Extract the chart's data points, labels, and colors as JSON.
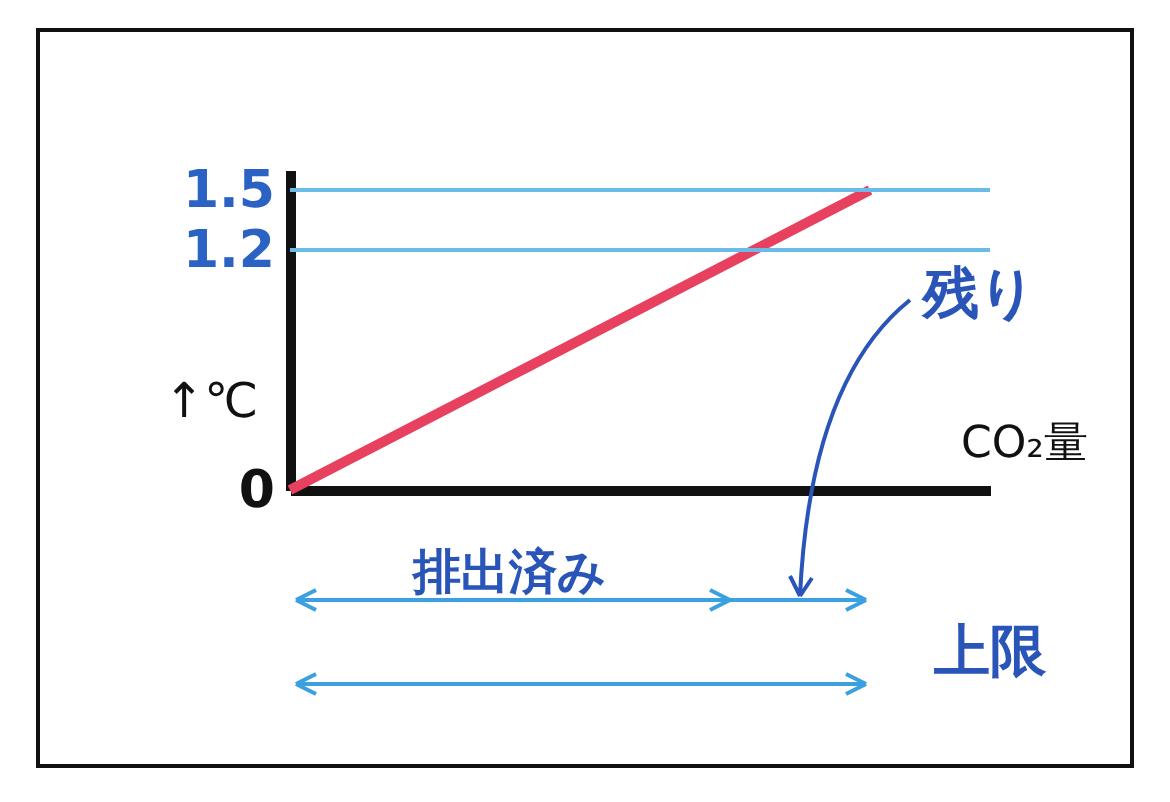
{
  "chart_data": {
    "type": "line",
    "xlabel": "CO₂量",
    "ylabel": "↑℃",
    "categories": [
      null,
      null,
      null,
      null,
      null,
      null
    ],
    "series": [
      {
        "color": "#e8415f",
        "values": [
          0,
          0.3,
          0.6,
          0.9,
          1.2,
          1.5
        ]
      }
    ],
    "ylim": [
      0,
      1.6
    ],
    "yticks": [
      0,
      1.2,
      1.5
    ],
    "tick_labels": "y",
    "grid": false,
    "marker": "none",
    "line_style": "solid",
    "ref_lines": [
      {
        "axis": "y",
        "value": 1.5,
        "color": "#6bbbe8"
      },
      {
        "axis": "y",
        "value": 1.2,
        "color": "#6bbbe8"
      }
    ],
    "annotations": [
      "排出済み",
      "残り",
      "上限"
    ]
  }
}
